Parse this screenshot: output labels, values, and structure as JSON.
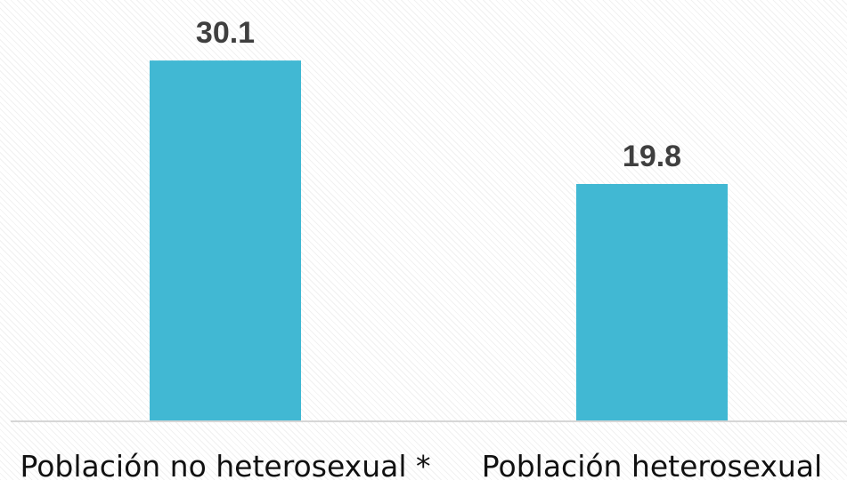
{
  "chart_data": {
    "type": "bar",
    "categories": [
      "Población no heterosexual *",
      "Población heterosexual"
    ],
    "values": [
      30.1,
      19.8
    ],
    "value_labels": [
      "30.1",
      "19.8"
    ],
    "title": "",
    "xlabel": "",
    "ylabel": "",
    "ylim": [
      0,
      35
    ],
    "grid": false,
    "legend": "none"
  },
  "colors": {
    "bar": "#41b8d3",
    "axis": "#d6d6d6",
    "value_label": "#3f3f3f",
    "category_label": "#111111"
  }
}
